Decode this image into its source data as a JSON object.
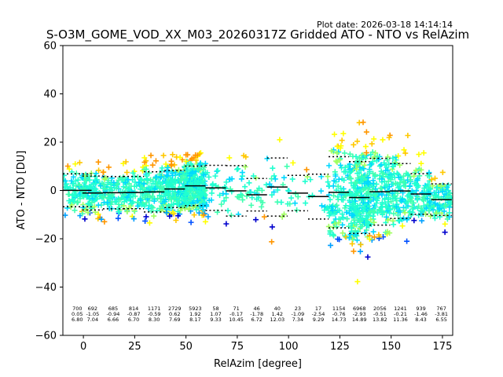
{
  "plot_date": "Plot date: 2026-03-18 14:14:14",
  "chart_data": {
    "type": "scatter",
    "title": "S-O3M_GOME_VOD_XX_M03_20260317Z Gridded ATO - NTO vs RelAzim",
    "xlabel": "RelAzim [degree]",
    "ylabel": "ATO - NTO [DU]",
    "xlim": [
      -10,
      180
    ],
    "ylim": [
      -60,
      60
    ],
    "xticks": [
      0,
      25,
      50,
      75,
      100,
      125,
      150,
      175
    ],
    "yticks": [
      -60,
      -40,
      -20,
      0,
      20,
      40,
      60
    ],
    "grid": false,
    "colors": {
      "point_palette": [
        "#0000cd",
        "#0050ff",
        "#00a0ff",
        "#00d8ff",
        "#20ffd0",
        "#40ffb0",
        "#a0ff60",
        "#ffff00",
        "#ffc800",
        "#ff9600"
      ],
      "mean_line": "#000000",
      "stddev_line": "#000000"
    },
    "bins": [
      {
        "center": -3,
        "width": 14,
        "count": "700",
        "mean": "0.05",
        "std": "6.80"
      },
      {
        "center": 4.5,
        "width": 10,
        "count": "692",
        "mean": "-1.05",
        "std": "7.04"
      },
      {
        "center": 14.5,
        "width": 10,
        "count": "685",
        "mean": "-0.94",
        "std": "6.66"
      },
      {
        "center": 24.5,
        "width": 10,
        "count": "814",
        "mean": "-0.87",
        "std": "6.70"
      },
      {
        "center": 34.5,
        "width": 10,
        "count": "1171",
        "mean": "-0.59",
        "std": "8.30"
      },
      {
        "center": 44.5,
        "width": 10,
        "count": "2729",
        "mean": "0.62",
        "std": "7.69"
      },
      {
        "center": 54.5,
        "width": 10,
        "count": "5923",
        "mean": "1.92",
        "std": "8.17"
      },
      {
        "center": 64.5,
        "width": 10,
        "count": "58",
        "mean": "1.07",
        "std": "9.33"
      },
      {
        "center": 74.5,
        "width": 10,
        "count": "71",
        "mean": "-0.17",
        "std": "10.45"
      },
      {
        "center": 84.5,
        "width": 10,
        "count": "46",
        "mean": "-1.78",
        "std": "6.72"
      },
      {
        "center": 94.5,
        "width": 10,
        "count": "40",
        "mean": "1.42",
        "std": "12.03"
      },
      {
        "center": 104.5,
        "width": 10,
        "count": "23",
        "mean": "-1.09",
        "std": "7.34"
      },
      {
        "center": 114.5,
        "width": 10,
        "count": "17",
        "mean": "-2.54",
        "std": "9.29"
      },
      {
        "center": 124.5,
        "width": 10,
        "count": "1154",
        "mean": "-0.76",
        "std": "14.73"
      },
      {
        "center": 134.5,
        "width": 10,
        "count": "6968",
        "mean": "-2.93",
        "std": "14.89"
      },
      {
        "center": 144.5,
        "width": 10,
        "count": "2056",
        "mean": "-0.51",
        "std": "13.82"
      },
      {
        "center": 154.5,
        "width": 10,
        "count": "1241",
        "mean": "-0.21",
        "std": "11.36"
      },
      {
        "center": 164.5,
        "width": 10,
        "count": "939",
        "mean": "-1.46",
        "std": "8.43"
      },
      {
        "center": 174.5,
        "width": 10,
        "count": "767",
        "mean": "-3.81",
        "std": "6.55"
      }
    ]
  }
}
